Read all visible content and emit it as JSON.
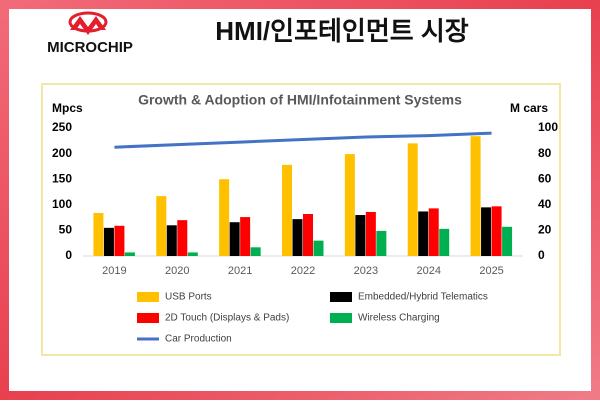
{
  "header": {
    "logo_text": "MICROCHIP",
    "title": "HMI/인포테인먼트 시장"
  },
  "chart_data": {
    "type": "bar",
    "title": "Growth & Adoption of HMI/Infotainment Systems",
    "y_label": "Mpcs",
    "y2_label": "M cars",
    "categories": [
      "2019",
      "2020",
      "2021",
      "2022",
      "2023",
      "2024",
      "2025"
    ],
    "series": [
      {
        "name": "USB Ports",
        "color": "#ffc000",
        "values": [
          84,
          117,
          150,
          178,
          199,
          220,
          234
        ]
      },
      {
        "name": "Embedded/Hybrid Telematics",
        "color": "#000000",
        "values": [
          55,
          60,
          66,
          72,
          80,
          87,
          95
        ]
      },
      {
        "name": "2D Touch (Displays & Pads)",
        "color": "#ff0000",
        "values": [
          59,
          70,
          76,
          82,
          86,
          93,
          97
        ]
      },
      {
        "name": "Wireless Charging",
        "color": "#00b050",
        "values": [
          7,
          7,
          17,
          30,
          49,
          53,
          57
        ]
      },
      {
        "name": "Car Production",
        "color": "#4472c4",
        "type": "line",
        "axis": "y2",
        "values": [
          85,
          87,
          89,
          91,
          93,
          94,
          96
        ]
      }
    ],
    "ylim": [
      0,
      250
    ],
    "yticks": [
      0,
      50,
      100,
      150,
      200,
      250
    ],
    "y2lim": [
      0,
      100
    ],
    "y2ticks": [
      0,
      20,
      40,
      60,
      80,
      100
    ],
    "legend": "bottom",
    "grid": false
  }
}
